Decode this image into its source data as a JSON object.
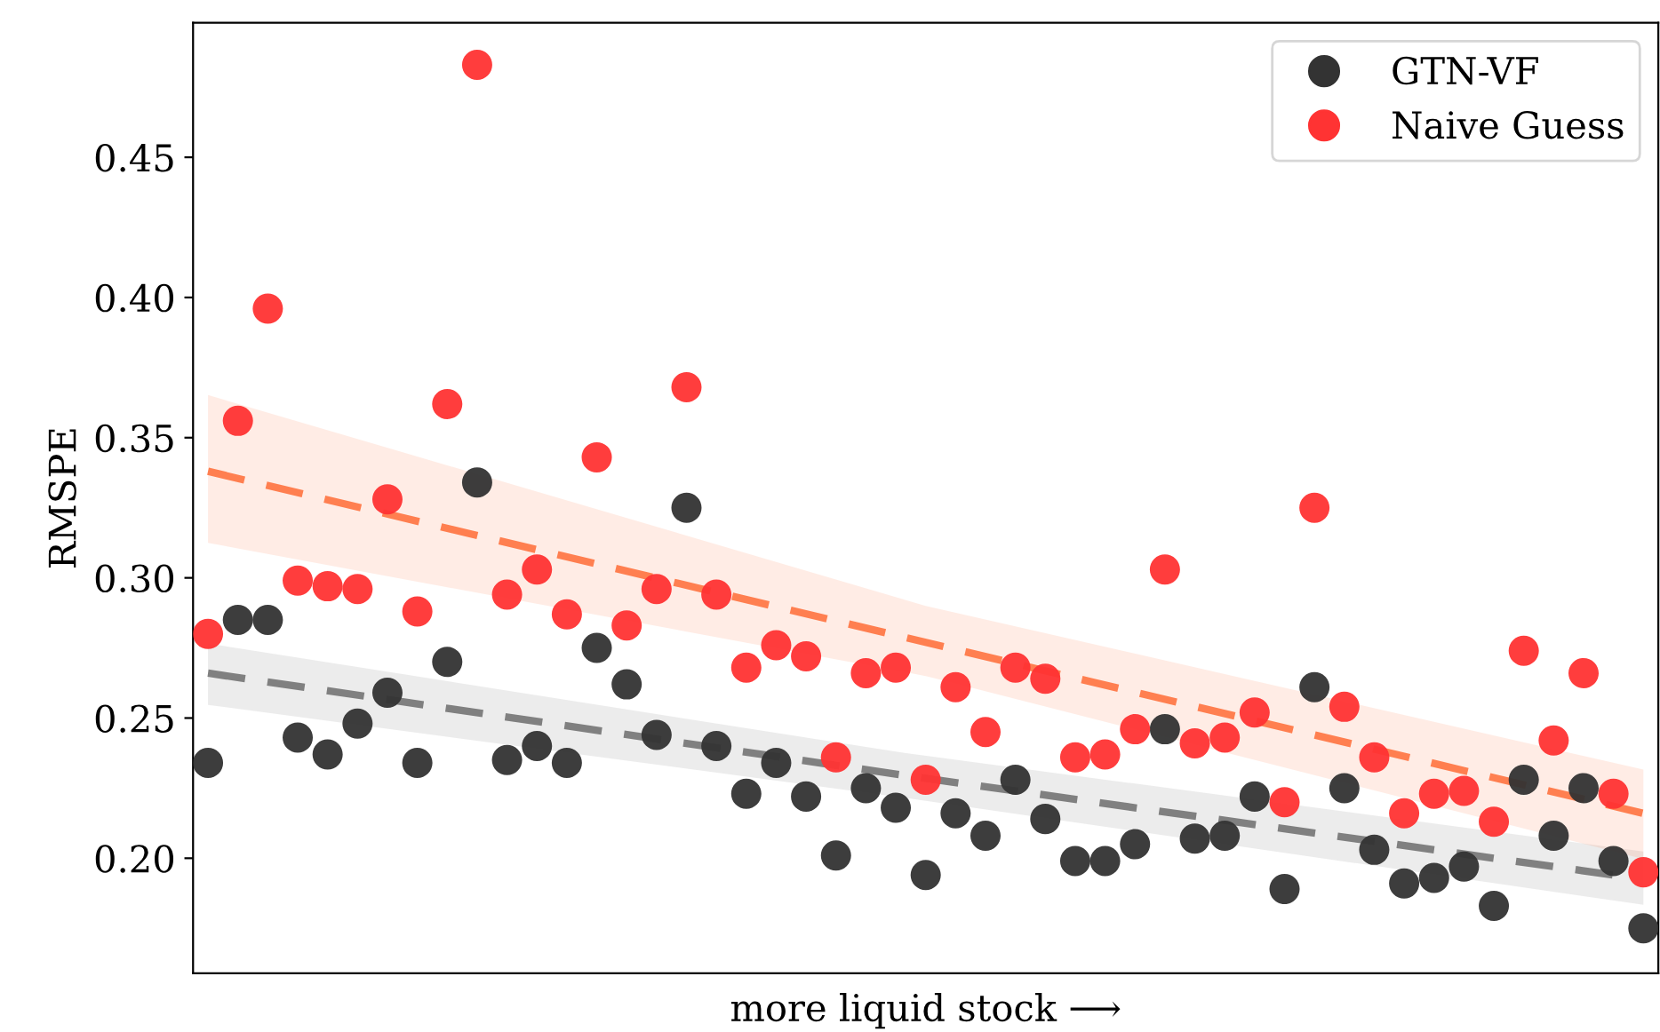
{
  "chart_data": {
    "type": "scatter",
    "xlabel": "more liquid stock ⟶",
    "ylabel": "RMSPE",
    "categories": [
      null,
      null,
      null,
      null,
      null,
      null,
      null,
      null,
      null,
      null,
      null,
      null,
      null,
      null,
      null,
      null,
      null,
      null,
      null,
      null,
      null,
      null,
      null,
      null,
      null,
      null,
      null,
      null,
      null,
      null,
      null,
      null,
      null,
      null,
      null,
      null,
      null,
      null,
      null,
      null,
      null,
      null,
      null,
      null,
      null,
      null,
      null,
      null,
      null
    ],
    "series": [
      {
        "name": "GTN-VF",
        "color": "#333333",
        "values": [
          0.234,
          0.285,
          0.285,
          0.243,
          0.237,
          0.248,
          0.259,
          0.234,
          0.27,
          0.334,
          0.235,
          0.24,
          0.234,
          0.275,
          0.262,
          0.244,
          0.325,
          0.24,
          0.223,
          0.234,
          0.222,
          0.201,
          0.225,
          0.218,
          0.194,
          0.216,
          0.208,
          0.228,
          0.214,
          0.199,
          0.199,
          0.205,
          0.246,
          0.207,
          0.208,
          0.222,
          0.189,
          0.261,
          0.225,
          0.203,
          0.191,
          0.193,
          0.197,
          0.183,
          0.228,
          0.208,
          0.225,
          0.199,
          0.175
        ]
      },
      {
        "name": "Naive Guess",
        "color": "#ff3333",
        "values": [
          0.28,
          0.356,
          0.396,
          0.299,
          0.297,
          0.296,
          0.328,
          0.288,
          0.362,
          0.483,
          0.294,
          0.303,
          0.287,
          0.343,
          0.283,
          0.296,
          0.368,
          0.294,
          0.268,
          0.276,
          0.272,
          0.236,
          0.266,
          0.268,
          0.228,
          0.261,
          0.245,
          0.268,
          0.264,
          0.236,
          0.237,
          0.246,
          0.303,
          0.241,
          0.243,
          0.252,
          0.22,
          0.325,
          0.254,
          0.236,
          0.216,
          0.223,
          0.224,
          0.213,
          0.274,
          0.242,
          0.266,
          0.223,
          0.195
        ]
      },
      {
        "type": "line",
        "color": "#808080",
        "line_style": "dashed",
        "marker": "none",
        "values": [
          0.266,
          null,
          null,
          null,
          null,
          null,
          null,
          null,
          null,
          null,
          null,
          null,
          null,
          null,
          null,
          null,
          null,
          null,
          null,
          null,
          null,
          null,
          null,
          0.23,
          null,
          null,
          null,
          null,
          null,
          null,
          null,
          null,
          null,
          null,
          null,
          null,
          null,
          null,
          null,
          null,
          null,
          null,
          null,
          null,
          null,
          null,
          null,
          0.194,
          null
        ],
        "lower": [
          0.2547,
          null,
          null,
          null,
          null,
          null,
          null,
          null,
          null,
          null,
          null,
          null,
          null,
          null,
          null,
          null,
          null,
          null,
          null,
          null,
          null,
          null,
          null,
          0.222,
          null,
          null,
          null,
          null,
          null,
          null,
          null,
          null,
          null,
          null,
          null,
          null,
          null,
          null,
          null,
          null,
          null,
          null,
          null,
          null,
          null,
          null,
          null,
          null,
          0.1834
        ],
        "upper": [
          0.2766,
          null,
          null,
          null,
          null,
          null,
          null,
          null,
          null,
          null,
          null,
          null,
          null,
          null,
          null,
          null,
          null,
          null,
          null,
          null,
          null,
          null,
          null,
          0.238,
          null,
          null,
          null,
          null,
          null,
          null,
          null,
          null,
          null,
          null,
          null,
          null,
          null,
          null,
          null,
          null,
          null,
          null,
          null,
          null,
          null,
          null,
          null,
          null,
          0.2024
        ]
      },
      {
        "type": "line",
        "color": "#ff7f50",
        "line_style": "dashed",
        "marker": "none",
        "values": [
          0.338,
          null,
          null,
          null,
          null,
          null,
          null,
          null,
          null,
          null,
          null,
          null,
          null,
          null,
          null,
          null,
          null,
          null,
          null,
          null,
          null,
          null,
          null,
          null,
          0.277,
          null,
          null,
          null,
          null,
          null,
          null,
          null,
          null,
          null,
          null,
          null,
          null,
          null,
          null,
          null,
          null,
          null,
          null,
          null,
          null,
          null,
          null,
          null,
          0.216
        ],
        "lower": [
          0.3125,
          null,
          null,
          null,
          null,
          null,
          null,
          null,
          null,
          null,
          null,
          null,
          null,
          null,
          null,
          null,
          null,
          null,
          null,
          null,
          null,
          null,
          null,
          null,
          0.265,
          null,
          null,
          null,
          null,
          null,
          null,
          null,
          null,
          null,
          null,
          null,
          null,
          null,
          null,
          null,
          null,
          null,
          null,
          null,
          null,
          null,
          null,
          null,
          0.1997
        ],
        "upper": [
          0.3652,
          null,
          null,
          null,
          null,
          null,
          null,
          null,
          null,
          null,
          null,
          null,
          null,
          null,
          null,
          null,
          null,
          null,
          null,
          null,
          null,
          null,
          null,
          null,
          0.29,
          null,
          null,
          null,
          null,
          null,
          null,
          null,
          null,
          null,
          null,
          null,
          null,
          null,
          null,
          null,
          null,
          null,
          null,
          null,
          null,
          null,
          null,
          null,
          0.2316
        ]
      }
    ],
    "ylim": [
      0.159,
      0.498
    ],
    "yticks": [
      {
        "value": 0.2,
        "label": "0.20"
      },
      {
        "value": 0.25,
        "label": "0.25"
      },
      {
        "value": 0.3,
        "label": "0.30"
      },
      {
        "value": 0.35,
        "label": "0.35"
      },
      {
        "value": 0.4,
        "label": "0.40"
      },
      {
        "value": 0.45,
        "label": "0.45"
      }
    ],
    "tick_labels": "y",
    "grid": false,
    "legend": "top right",
    "marker": "circle"
  }
}
